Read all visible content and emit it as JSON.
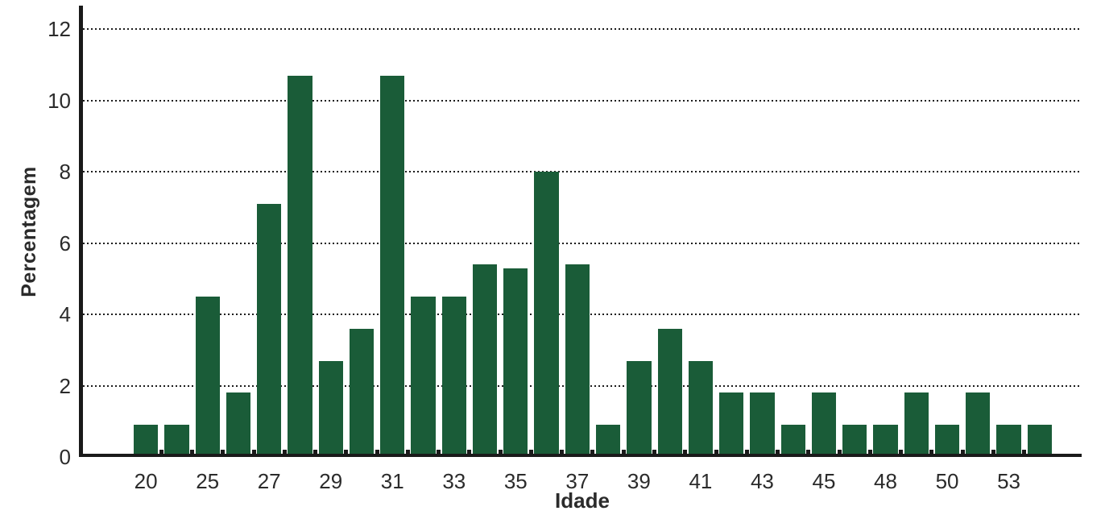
{
  "chart_data": {
    "type": "bar",
    "title": "",
    "xlabel": "Idade",
    "ylabel": "Percentagem",
    "categories": [
      "20",
      "",
      "25",
      "",
      "27",
      "",
      "29",
      "",
      "31",
      "",
      "33",
      "",
      "35",
      "",
      "37",
      "",
      "39",
      "",
      "41",
      "",
      "43",
      "",
      "45",
      "",
      "48",
      "",
      "50",
      "",
      "53",
      ""
    ],
    "values": [
      0.9,
      0.9,
      4.5,
      1.8,
      7.1,
      10.7,
      2.7,
      3.6,
      10.7,
      4.5,
      4.5,
      5.4,
      5.3,
      8.0,
      5.4,
      0.9,
      2.7,
      3.6,
      2.7,
      1.8,
      1.8,
      0.9,
      1.8,
      0.9,
      0.9,
      1.8,
      0.9,
      1.8,
      0.9,
      0.9
    ],
    "y_ticks": [
      0,
      2,
      4,
      6,
      8,
      10,
      12
    ],
    "ylim": [
      0,
      12.6
    ],
    "grid": "horizontal-dotted",
    "legend": "none",
    "bar_color": "#1a5c38",
    "axis_color": "#1a1a1a",
    "text_color": "#2b2b2b"
  }
}
